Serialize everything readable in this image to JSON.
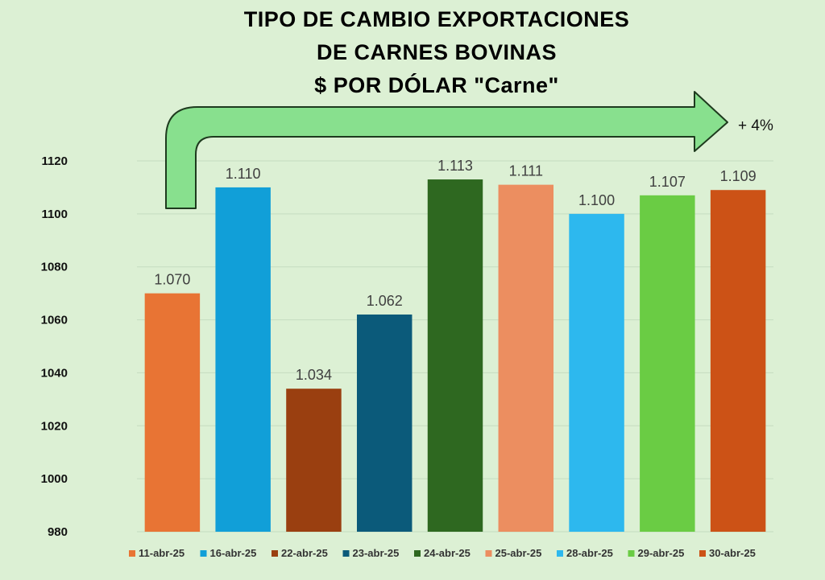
{
  "chart_data": {
    "type": "bar",
    "title_lines": [
      "TIPO DE CAMBIO EXPORTACIONES",
      "DE CARNES BOVINAS",
      "$ POR DÓLAR \"Carne\""
    ],
    "categories": [
      "11-abr-25",
      "16-abr-25",
      "22-abr-25",
      "23-abr-25",
      "24-abr-25",
      "25-abr-25",
      "28-abr-25",
      "29-abr-25",
      "30-abr-25"
    ],
    "values": [
      1070,
      1110,
      1034,
      1062,
      1113,
      1111,
      1100,
      1107,
      1109
    ],
    "data_labels": [
      "1.070",
      "1.110",
      "1.034",
      "1.062",
      "1.113",
      "1.111",
      "1.100",
      "1.107",
      "1.109"
    ],
    "colors": [
      "#e87434",
      "#119fd8",
      "#9a3f10",
      "#0b5a7a",
      "#2e6820",
      "#ec8e60",
      "#2db8ee",
      "#6acc44",
      "#cc5216"
    ],
    "ylim": [
      980,
      1120
    ],
    "yticks": [
      980,
      1000,
      1020,
      1040,
      1060,
      1080,
      1100,
      1120
    ],
    "grid": true,
    "legend_position": "bottom",
    "annotation": {
      "text": "+ 4%",
      "arrow_color": "#88e08e",
      "arrow_outline": "#1e3a1e"
    },
    "xlabel": "",
    "ylabel": ""
  }
}
